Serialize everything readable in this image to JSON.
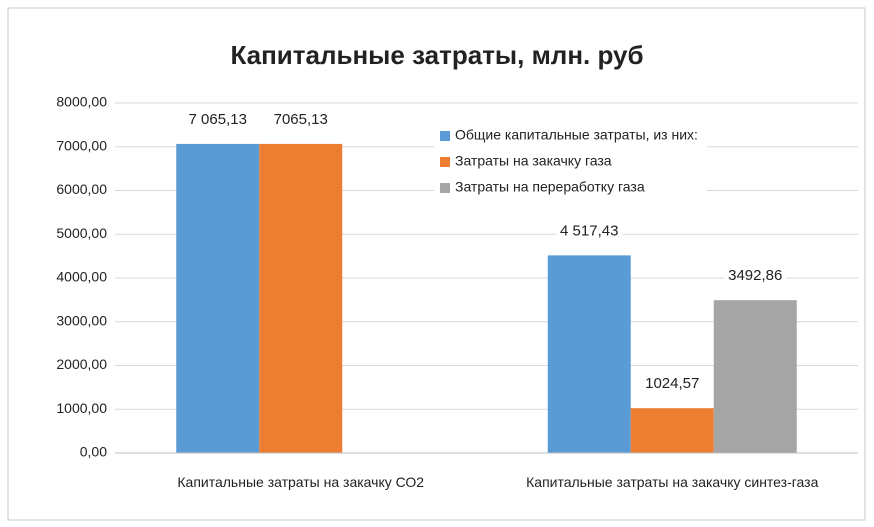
{
  "chart_data": {
    "type": "bar",
    "title": "Капитальные затраты, млн. руб",
    "categories": [
      "Капитальные затраты на закачку СО2",
      "Капитальные затраты на закачку синтез-газа"
    ],
    "series": [
      {
        "name": "Общие капитальные затраты, из них:",
        "color": "#5b9bd5",
        "values": [
          7065.13,
          4517.43
        ],
        "value_labels": [
          "7 065,13",
          "4 517,43"
        ]
      },
      {
        "name": "Затраты на закачку газа",
        "color": "#ed7d31",
        "values": [
          7065.13,
          1024.57
        ],
        "value_labels": [
          "7065,13",
          "1024,57"
        ]
      },
      {
        "name": "Затраты на переработку газа",
        "color": "#a5a5a5",
        "values": [
          null,
          3492.86
        ],
        "value_labels": [
          null,
          "3492,86"
        ]
      }
    ],
    "ylim": [
      0,
      8000
    ],
    "yticks": [
      {
        "value": 0,
        "label": "0,00"
      },
      {
        "value": 1000,
        "label": "1000,00"
      },
      {
        "value": 2000,
        "label": "2000,00"
      },
      {
        "value": 3000,
        "label": "3000,00"
      },
      {
        "value": 4000,
        "label": "4000,00"
      },
      {
        "value": 5000,
        "label": "5000,00"
      },
      {
        "value": 6000,
        "label": "6000,00"
      },
      {
        "value": 7000,
        "label": "7000,00"
      },
      {
        "value": 8000,
        "label": "8000,00"
      }
    ],
    "grid": true,
    "legend": "top-right"
  }
}
